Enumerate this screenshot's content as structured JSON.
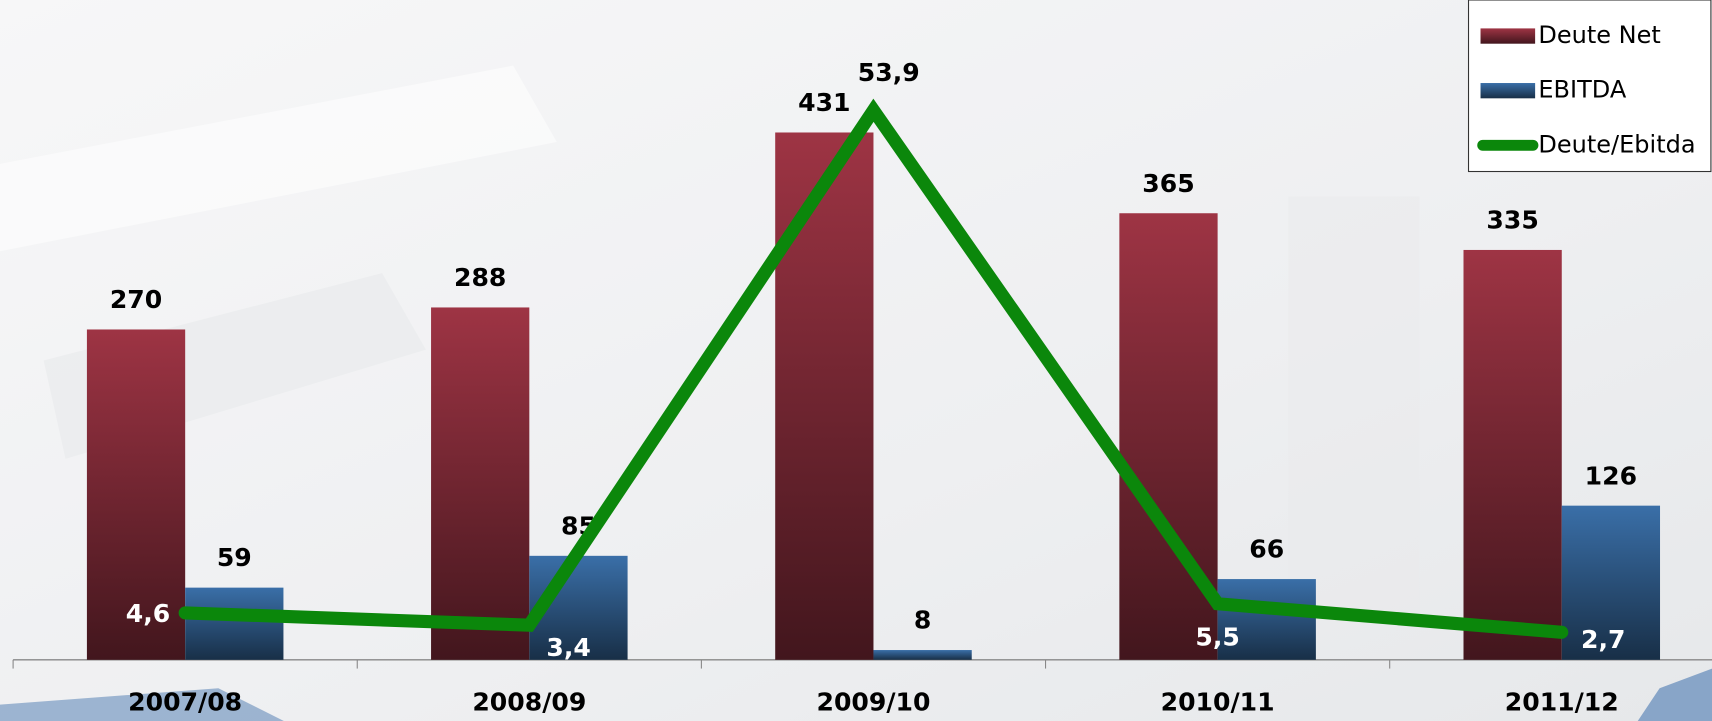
{
  "chart_data": {
    "type": "bar",
    "categories": [
      "2007/08",
      "2008/09",
      "2009/10",
      "2010/11",
      "2011/12"
    ],
    "series": [
      {
        "name": "Deute Net",
        "color": "#9e3444",
        "values": [
          270,
          288,
          431,
          365,
          335
        ]
      },
      {
        "name": "EBITDA",
        "color": "#3a6fa8",
        "values": [
          59,
          85,
          8,
          66,
          126
        ]
      },
      {
        "name": "Deute/Ebitda",
        "type": "line",
        "axis": "y2",
        "color": "#0b870b",
        "values": [
          4.6,
          3.4,
          53.9,
          5.5,
          2.7
        ],
        "value_labels": [
          "4,6",
          "3,4",
          "53,9",
          "5,5",
          "2,7"
        ]
      }
    ],
    "ylim": [
      0,
      500
    ],
    "y2lim": [
      0,
      60
    ],
    "legend": "upper right"
  }
}
